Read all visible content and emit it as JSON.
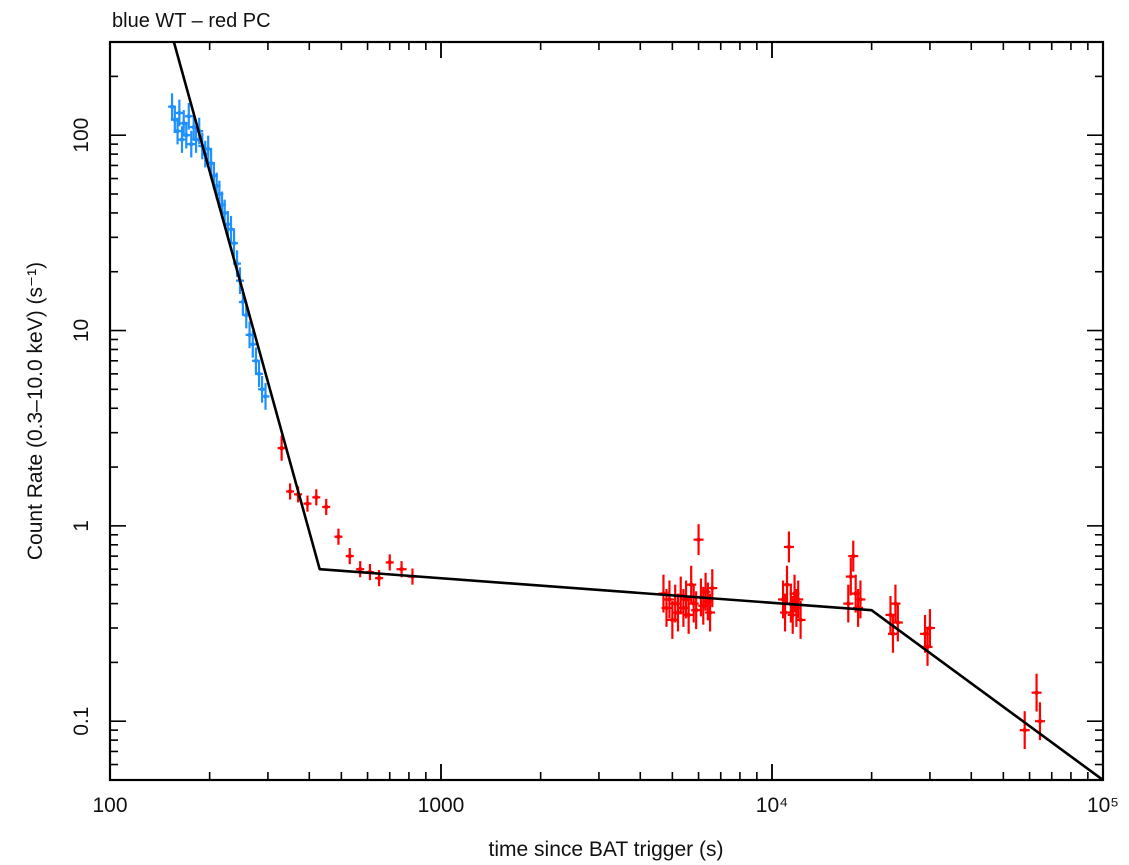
{
  "chart_data": {
    "type": "scatter",
    "title": "blue WT – red PC",
    "xlabel": "time since BAT trigger (s)",
    "ylabel": "Count Rate (0.3–10.0 keV) (s⁻¹)",
    "xscale": "log",
    "yscale": "log",
    "xlim": [
      100,
      100000
    ],
    "ylim": [
      0.05,
      300
    ],
    "x_ticks": [
      {
        "value": 100,
        "label": "100"
      },
      {
        "value": 1000,
        "label": "1000"
      },
      {
        "value": 10000,
        "label": "10⁴"
      },
      {
        "value": 100000,
        "label": "10⁵"
      }
    ],
    "y_ticks": [
      {
        "value": 0.1,
        "label": "0.1"
      },
      {
        "value": 1,
        "label": "1"
      },
      {
        "value": 10,
        "label": "10"
      },
      {
        "value": 100,
        "label": "100"
      }
    ],
    "grid": false,
    "series": [
      {
        "name": "WT",
        "color": "#1e90ff",
        "points": [
          [
            154,
            140,
            1.17
          ],
          [
            157,
            120,
            1.17
          ],
          [
            160,
            105,
            1.17
          ],
          [
            162,
            130,
            1.17
          ],
          [
            165,
            95,
            1.17
          ],
          [
            167,
            115,
            1.17
          ],
          [
            170,
            100,
            1.17
          ],
          [
            173,
            125,
            1.17
          ],
          [
            176,
            90,
            1.17
          ],
          [
            179,
            110,
            1.17
          ],
          [
            182,
            95,
            1.17
          ],
          [
            186,
            105,
            1.17
          ],
          [
            190,
            88,
            1.17
          ],
          [
            194,
            80,
            1.17
          ],
          [
            198,
            85,
            1.17
          ],
          [
            202,
            72,
            1.17
          ],
          [
            206,
            62,
            1.17
          ],
          [
            210,
            55,
            1.17
          ],
          [
            214,
            50,
            1.17
          ],
          [
            218,
            44,
            1.17
          ],
          [
            222,
            40,
            1.17
          ],
          [
            227,
            35,
            1.17
          ],
          [
            232,
            33,
            1.17
          ],
          [
            237,
            28,
            1.17
          ],
          [
            242,
            22,
            1.17
          ],
          [
            247,
            18,
            1.17
          ],
          [
            252,
            14,
            1.17
          ],
          [
            258,
            12,
            1.17
          ],
          [
            264,
            9.5,
            1.17
          ],
          [
            270,
            8.5,
            1.17
          ],
          [
            276,
            7,
            1.17
          ],
          [
            282,
            6,
            1.17
          ],
          [
            288,
            5,
            1.17
          ],
          [
            295,
            4.6,
            1.17
          ]
        ]
      },
      {
        "name": "PC",
        "color": "#ff0000",
        "points": [
          [
            330,
            2.5,
            1.16
          ],
          [
            350,
            1.5,
            1.1
          ],
          [
            370,
            1.45,
            1.1
          ],
          [
            395,
            1.3,
            1.1
          ],
          [
            420,
            1.4,
            1.1
          ],
          [
            450,
            1.25,
            1.1
          ],
          [
            490,
            0.88,
            1.1
          ],
          [
            530,
            0.7,
            1.1
          ],
          [
            570,
            0.6,
            1.1
          ],
          [
            610,
            0.58,
            1.1
          ],
          [
            650,
            0.54,
            1.1
          ],
          [
            700,
            0.65,
            1.1
          ],
          [
            760,
            0.6,
            1.1
          ],
          [
            820,
            0.55,
            1.1
          ],
          [
            4700,
            0.45,
            1.25
          ],
          [
            4800,
            0.38,
            1.25
          ],
          [
            4900,
            0.42,
            1.25
          ],
          [
            5000,
            0.33,
            1.25
          ],
          [
            5100,
            0.4,
            1.25
          ],
          [
            5200,
            0.36,
            1.25
          ],
          [
            5300,
            0.44,
            1.25
          ],
          [
            5400,
            0.38,
            1.25
          ],
          [
            5500,
            0.42,
            1.25
          ],
          [
            5600,
            0.35,
            1.25
          ],
          [
            5700,
            0.5,
            1.25
          ],
          [
            5800,
            0.4,
            1.25
          ],
          [
            5900,
            0.37,
            1.25
          ],
          [
            6000,
            0.85,
            1.2
          ],
          [
            6100,
            0.43,
            1.25
          ],
          [
            6200,
            0.39,
            1.25
          ],
          [
            6300,
            0.46,
            1.25
          ],
          [
            6400,
            0.41,
            1.25
          ],
          [
            6500,
            0.36,
            1.25
          ],
          [
            6600,
            0.48,
            1.25
          ],
          [
            10800,
            0.42,
            1.25
          ],
          [
            10950,
            0.36,
            1.25
          ],
          [
            11100,
            0.5,
            1.25
          ],
          [
            11250,
            0.78,
            1.2
          ],
          [
            11400,
            0.4,
            1.25
          ],
          [
            11550,
            0.35,
            1.25
          ],
          [
            11700,
            0.45,
            1.25
          ],
          [
            11850,
            0.38,
            1.25
          ],
          [
            12000,
            0.42,
            1.25
          ],
          [
            12200,
            0.33,
            1.25
          ],
          [
            17000,
            0.4,
            1.25
          ],
          [
            17300,
            0.55,
            1.25
          ],
          [
            17600,
            0.7,
            1.2
          ],
          [
            17900,
            0.45,
            1.25
          ],
          [
            18200,
            0.38,
            1.25
          ],
          [
            18500,
            0.42,
            1.25
          ],
          [
            22800,
            0.35,
            1.25
          ],
          [
            23200,
            0.28,
            1.25
          ],
          [
            23600,
            0.4,
            1.25
          ],
          [
            24000,
            0.32,
            1.25
          ],
          [
            29000,
            0.28,
            1.25
          ],
          [
            29500,
            0.24,
            1.25
          ],
          [
            30000,
            0.3,
            1.25
          ],
          [
            58000,
            0.09,
            1.25
          ],
          [
            63000,
            0.14,
            1.25
          ],
          [
            64500,
            0.1,
            1.25
          ]
        ]
      }
    ],
    "model": {
      "name": "broken power-law fit",
      "color": "#000000",
      "points": [
        [
          156,
          300
        ],
        [
          430,
          0.6
        ],
        [
          20000,
          0.37
        ],
        [
          100000,
          0.05
        ]
      ]
    }
  }
}
